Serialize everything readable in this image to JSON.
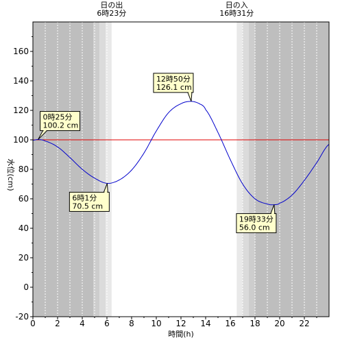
{
  "chart_data": {
    "type": "line",
    "xlabel": "時間(h)",
    "ylabel": "水位(cm)",
    "xlim": [
      0,
      24
    ],
    "ylim": [
      -20,
      180
    ],
    "x_ticks": [
      0,
      2,
      4,
      6,
      8,
      10,
      12,
      14,
      16,
      18,
      20,
      22
    ],
    "y_ticks": [
      -20,
      0,
      20,
      40,
      60,
      80,
      100,
      120,
      140,
      160
    ],
    "reference_line": {
      "y": 100,
      "color": "#e00000"
    },
    "series": [
      {
        "color": "#0000cc",
        "x": [
          0,
          0.42,
          1,
          2,
          3,
          4,
          5,
          6.02,
          7,
          8,
          9,
          10,
          11,
          12,
          12.83,
          13.5,
          14,
          15,
          16,
          17,
          18,
          19,
          19.55,
          20,
          21,
          22,
          23,
          24
        ],
        "y": [
          99.7,
          100.2,
          99.2,
          95.2,
          88.0,
          80.0,
          74.0,
          70.5,
          72.8,
          79.5,
          91.0,
          106.0,
          118.5,
          124.5,
          126.1,
          124.5,
          120.5,
          105.0,
          86.5,
          70.0,
          60.0,
          56.5,
          56.0,
          57.0,
          62.5,
          72.5,
          84.5,
          97.0
        ]
      }
    ],
    "sunrise": {
      "label": "日の出",
      "time": "6時23分",
      "hour": 6.383
    },
    "sunset": {
      "label": "日の入",
      "time": "16時31分",
      "hour": 16.517
    },
    "twilight_bands": [
      {
        "from": 0,
        "to": 4.9,
        "shade": "#bebebe"
      },
      {
        "from": 4.9,
        "to": 5.4,
        "shade": "#cdcdcd"
      },
      {
        "from": 5.4,
        "to": 5.9,
        "shade": "#dbdbdb"
      },
      {
        "from": 5.9,
        "to": 6.383,
        "shade": "#e9e9e9"
      },
      {
        "from": 6.383,
        "to": 16.517,
        "shade": "#ffffff"
      },
      {
        "from": 16.517,
        "to": 16.97,
        "shade": "#e9e9e9"
      },
      {
        "from": 16.97,
        "to": 17.5,
        "shade": "#dbdbdb"
      },
      {
        "from": 17.5,
        "to": 18.0,
        "shade": "#cdcdcd"
      },
      {
        "from": 18.0,
        "to": 24,
        "shade": "#bebebe"
      }
    ],
    "annotations": [
      {
        "time": "0時25分",
        "level": "100.2 cm",
        "x": 0.42,
        "y": 100.2,
        "pos": "above-right"
      },
      {
        "time": "6時1分",
        "level": "70.5 cm",
        "x": 6.02,
        "y": 70.5,
        "pos": "below-left"
      },
      {
        "time": "12時50分",
        "level": "126.1 cm",
        "x": 12.83,
        "y": 126.1,
        "pos": "above-left"
      },
      {
        "time": "19時33分",
        "level": "56.0 cm",
        "x": 19.55,
        "y": 56.0,
        "pos": "below-left"
      }
    ]
  }
}
